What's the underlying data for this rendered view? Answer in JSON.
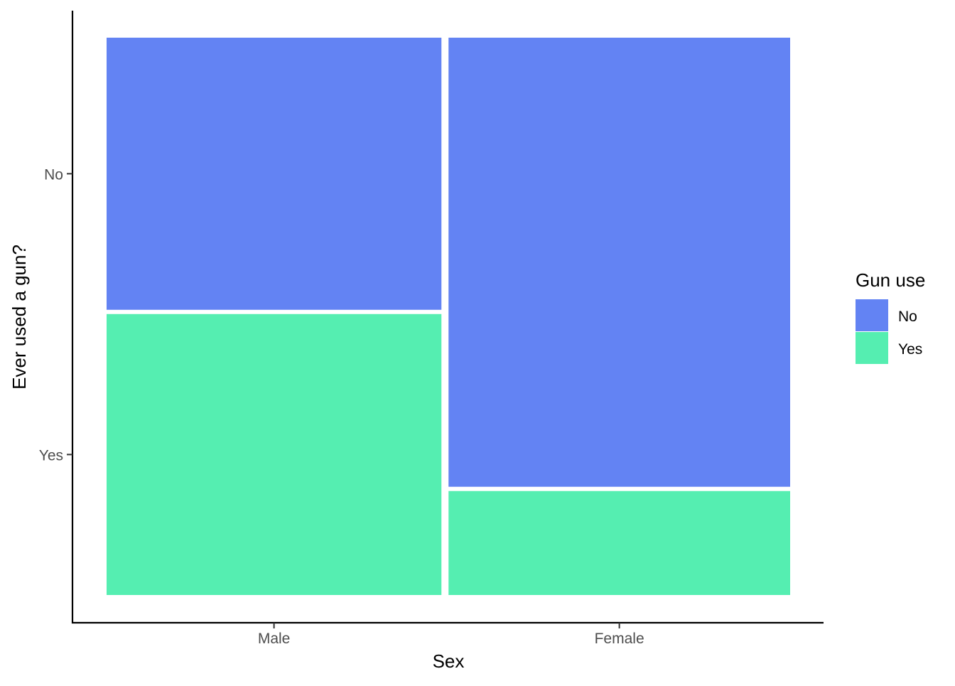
{
  "chart_data": {
    "type": "mosaic",
    "xlabel": "Sex",
    "ylabel": "Ever used a gun?",
    "categories": [
      "Male",
      "Female"
    ],
    "category_proportions": [
      0.495,
      0.505
    ],
    "y_tick_labels": [
      "No",
      "Yes"
    ],
    "series": [
      {
        "name": "No",
        "values": [
          0.492,
          0.812
        ]
      },
      {
        "name": "Yes",
        "values": [
          0.508,
          0.188
        ]
      }
    ],
    "legend": {
      "title": "Gun use",
      "position": "right",
      "entries": [
        "No",
        "Yes"
      ]
    },
    "colors": {
      "No": "#6383F3",
      "Yes": "#55EEB1"
    },
    "grid": false
  }
}
